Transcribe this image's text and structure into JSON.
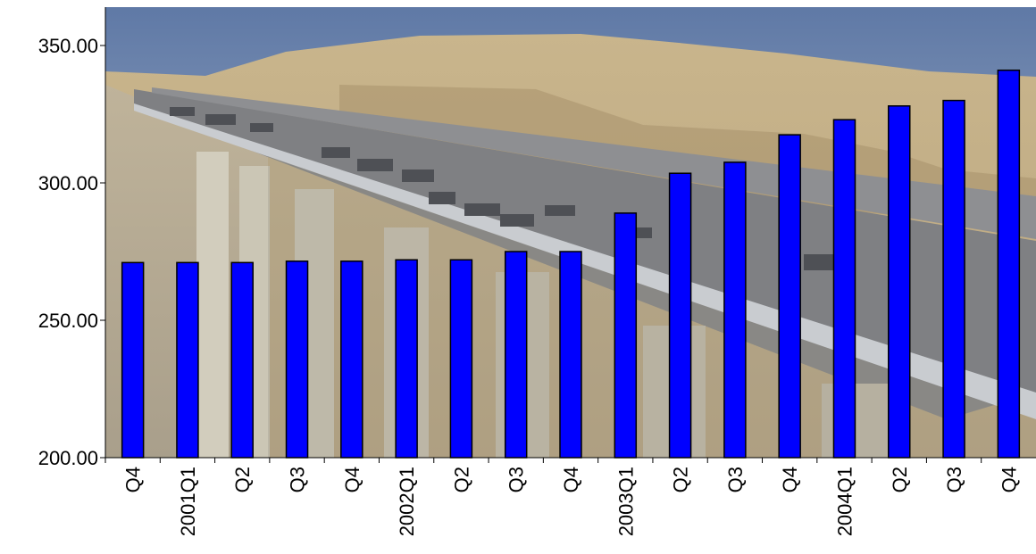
{
  "chart_data": {
    "type": "bar",
    "title": "",
    "xlabel": "",
    "ylabel": "",
    "categories": [
      "Q4",
      "2001Q1",
      "Q2",
      "Q3",
      "Q4",
      "2002Q1",
      "Q2",
      "Q3",
      "Q4",
      "2003Q1",
      "Q2",
      "Q3",
      "Q4",
      "2004Q1",
      "Q2",
      "Q3",
      "Q4"
    ],
    "values": [
      271,
      271,
      271,
      271.5,
      271.5,
      272,
      272,
      275,
      275,
      289,
      303.5,
      307.5,
      317.5,
      323,
      328,
      330,
      341
    ],
    "ylim": [
      200,
      350
    ],
    "yticks": [
      "200.00",
      "250.00",
      "300.00",
      "350.00"
    ],
    "bar_color": "#0000ff",
    "grid": false,
    "legend": "none",
    "background": "photo of highway bridge through desert hills"
  }
}
